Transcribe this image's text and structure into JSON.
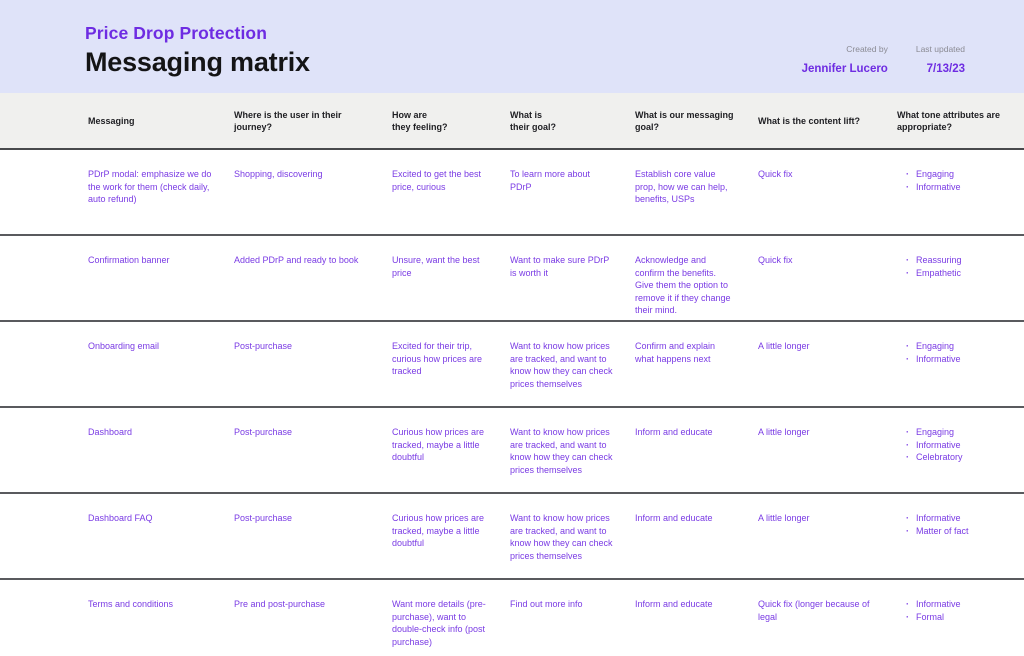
{
  "header": {
    "subtitle": "Price Drop Protection",
    "title": "Messaging matrix",
    "created_by_label": "Created by",
    "created_by_value": "Jennifer Lucero",
    "last_updated_label": "Last updated",
    "last_updated_value": "7/13/23"
  },
  "colors": {
    "banner_background": "#dfe3f9",
    "header_band_background": "#f0f0ee",
    "accent_purple": "#6e2ce2",
    "body_purple": "#7a3be4",
    "separator_gray": "#595a5e"
  },
  "table": {
    "columns": {
      "messaging": "Messaging",
      "journey": "Where is the user in their journey?",
      "feeling": "How are\nthey feeling?",
      "goal": "What is\ntheir goal?",
      "messaging_goal": "What is our messaging\ngoal?",
      "content_lift": "What is the content lift?",
      "tone": "What tone attributes are\nappropriate?"
    },
    "rows": [
      {
        "messaging": "PDrP modal: emphasize we do the work for them (check daily, auto refund)",
        "journey": "Shopping, discovering",
        "feeling": "Excited to get the best price, curious",
        "goal": "To learn more about PDrP",
        "messaging_goal": "Establish core value prop, how we can help, benefits, USPs",
        "content_lift": "Quick fix",
        "tone_attributes": [
          "Engaging",
          "Informative"
        ]
      },
      {
        "messaging": "Confirmation banner",
        "journey": "Added PDrP and ready to book",
        "feeling": "Unsure, want the best price",
        "goal": "Want to make sure PDrP is worth it",
        "messaging_goal": "Acknowledge and confirm the benefits. Give them the option to remove it if they change their mind.",
        "content_lift": "Quick fix",
        "tone_attributes": [
          "Reassuring",
          "Empathetic"
        ]
      },
      {
        "messaging": "Onboarding email",
        "journey": "Post-purchase",
        "feeling": "Excited for their trip, curious how prices are tracked",
        "goal": "Want to know how prices are tracked, and want to know how they can check prices themselves",
        "messaging_goal": "Confirm and explain what happens next",
        "content_lift": "A little longer",
        "tone_attributes": [
          "Engaging",
          "Informative"
        ]
      },
      {
        "messaging": "Dashboard",
        "journey": "Post-purchase",
        "feeling": "Curious how prices are tracked, maybe a little doubtful",
        "goal": "Want to know how prices are tracked, and want to know how they can check prices themselves",
        "messaging_goal": "Inform and educate",
        "content_lift": "A little longer",
        "tone_attributes": [
          "Engaging",
          "Informative",
          "Celebratory"
        ]
      },
      {
        "messaging": "Dashboard FAQ",
        "journey": "Post-purchase",
        "feeling": "Curious how prices are tracked, maybe a little doubtful",
        "goal": "Want to know how prices are tracked, and want to know how they can check prices themselves",
        "messaging_goal": "Inform and educate",
        "content_lift": "A little longer",
        "tone_attributes": [
          "Informative",
          "Matter of fact"
        ]
      },
      {
        "messaging": "Terms and conditions",
        "journey": "Pre and post-purchase",
        "feeling": "Want more details (pre-purchase), want to double-check info (post purchase)",
        "goal": "Find out more info",
        "messaging_goal": "Inform and educate",
        "content_lift": "Quick fix (longer because of legal",
        "tone_attributes": [
          "Informative",
          "Formal"
        ]
      }
    ]
  }
}
